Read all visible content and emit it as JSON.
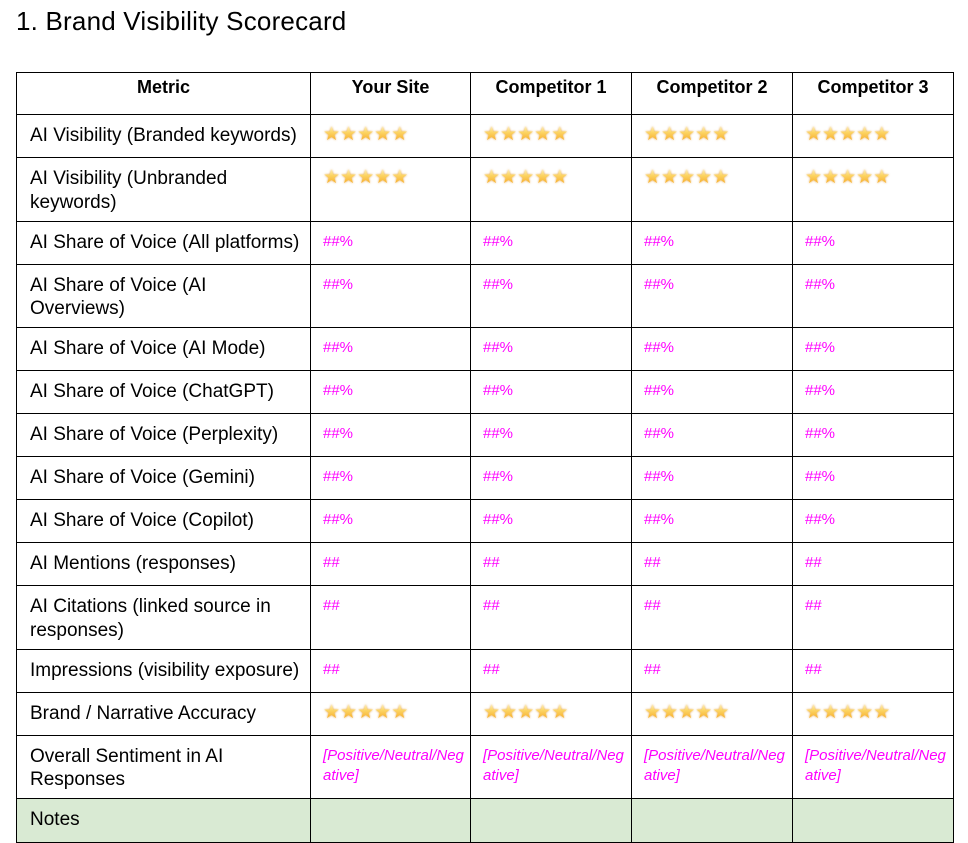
{
  "page": {
    "title": "1. Brand Visibility Scorecard"
  },
  "colors": {
    "value_text": "#ff00ff",
    "notes_row_background": "#d9ead3",
    "table_border": "#000000",
    "star_gold": "#fcc934"
  },
  "icons": {
    "star_glyph": "★",
    "star_semantic": "star-emoji"
  },
  "table": {
    "columns": [
      "Metric",
      "Your Site",
      "Competitor 1",
      "Competitor 2",
      "Competitor 3"
    ],
    "rows": [
      {
        "metric": "AI Visibility (Branded keywords)",
        "type": "stars",
        "stars": [
          5,
          5,
          5,
          5
        ]
      },
      {
        "metric": "AI Visibility (Unbranded keywords)",
        "type": "stars",
        "stars": [
          5,
          5,
          5,
          5
        ],
        "tall": true
      },
      {
        "metric": "AI Share of Voice (All platforms)",
        "type": "text",
        "values": [
          "##%",
          "##%",
          "##%",
          "##%"
        ]
      },
      {
        "metric": "AI Share of Voice (AI Overviews)",
        "type": "text",
        "values": [
          "##%",
          "##%",
          "##%",
          "##%"
        ]
      },
      {
        "metric": "AI Share of Voice (AI Mode)",
        "type": "text",
        "values": [
          "##%",
          "##%",
          "##%",
          "##%"
        ]
      },
      {
        "metric": "AI Share of Voice (ChatGPT)",
        "type": "text",
        "values": [
          "##%",
          "##%",
          "##%",
          "##%"
        ]
      },
      {
        "metric": "AI Share of Voice (Perplexity)",
        "type": "text",
        "values": [
          "##%",
          "##%",
          "##%",
          "##%"
        ]
      },
      {
        "metric": "AI Share of Voice (Gemini)",
        "type": "text",
        "values": [
          "##%",
          "##%",
          "##%",
          "##%"
        ]
      },
      {
        "metric": "AI Share of Voice (Copilot)",
        "type": "text",
        "values": [
          "##%",
          "##%",
          "##%",
          "##%"
        ]
      },
      {
        "metric": "AI Mentions (responses)",
        "type": "text",
        "values": [
          "##",
          "##",
          "##",
          "##"
        ]
      },
      {
        "metric": "AI Citations (linked source in responses)",
        "type": "text",
        "values": [
          "##",
          "##",
          "##",
          "##"
        ],
        "tall": true
      },
      {
        "metric": "Impressions (visibility exposure)",
        "type": "text",
        "values": [
          "##",
          "##",
          "##",
          "##"
        ]
      },
      {
        "metric": "Brand / Narrative Accuracy",
        "type": "stars",
        "stars": [
          5,
          5,
          5,
          5
        ]
      },
      {
        "metric": "Overall Sentiment in AI Responses",
        "type": "text",
        "italic": true,
        "values": [
          "[Positive/Neutral/Negative]",
          "[Positive/Neutral/Negative]",
          "[Positive/Neutral/Negative]",
          "[Positive/Neutral/Negative]"
        ],
        "tall": true
      },
      {
        "metric": "Notes",
        "type": "empty",
        "highlight": true,
        "values": [
          "",
          "",
          "",
          ""
        ]
      }
    ]
  }
}
